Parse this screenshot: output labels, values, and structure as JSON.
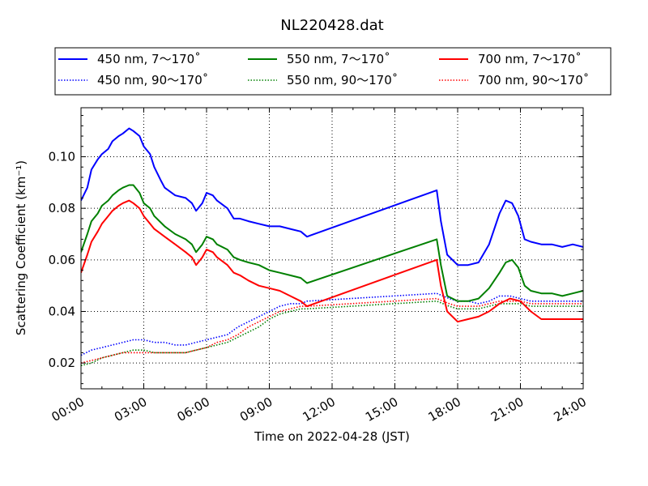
{
  "chart_data": {
    "type": "line",
    "title": "NL220428.dat",
    "xlabel": "Time on 2022-04-28 (JST)",
    "ylabel": "Scattering Coefficient (km⁻¹)",
    "xlim": [
      0,
      24
    ],
    "ylim": [
      0.01,
      0.119
    ],
    "x_ticks": [
      0,
      3,
      6,
      9,
      12,
      15,
      18,
      21,
      24
    ],
    "x_tick_labels": [
      "00:00",
      "03:00",
      "06:00",
      "09:00",
      "12:00",
      "15:00",
      "18:00",
      "21:00",
      "24:00"
    ],
    "y_ticks": [
      0.02,
      0.04,
      0.06,
      0.08,
      0.1
    ],
    "y_tick_labels": [
      "0.02",
      "0.04",
      "0.06",
      "0.08",
      "0.10"
    ],
    "grid": true,
    "legend_position": "above-plot",
    "series": [
      {
        "name": "450 nm, 7～170˚",
        "color": "#0000ff",
        "style": "solid",
        "points": [
          [
            0,
            0.083
          ],
          [
            0.3,
            0.088
          ],
          [
            0.5,
            0.095
          ],
          [
            0.8,
            0.099
          ],
          [
            1.0,
            0.101
          ],
          [
            1.3,
            0.103
          ],
          [
            1.5,
            0.106
          ],
          [
            1.8,
            0.108
          ],
          [
            2.0,
            0.109
          ],
          [
            2.3,
            0.111
          ],
          [
            2.5,
            0.11
          ],
          [
            2.8,
            0.108
          ],
          [
            3.0,
            0.104
          ],
          [
            3.3,
            0.101
          ],
          [
            3.5,
            0.096
          ],
          [
            3.8,
            0.091
          ],
          [
            4.0,
            0.088
          ],
          [
            4.5,
            0.085
          ],
          [
            5.0,
            0.084
          ],
          [
            5.3,
            0.082
          ],
          [
            5.5,
            0.079
          ],
          [
            5.8,
            0.082
          ],
          [
            6.0,
            0.086
          ],
          [
            6.3,
            0.085
          ],
          [
            6.5,
            0.083
          ],
          [
            7.0,
            0.08
          ],
          [
            7.3,
            0.076
          ],
          [
            7.6,
            0.076
          ],
          [
            8.0,
            0.075
          ],
          [
            8.5,
            0.074
          ],
          [
            9.0,
            0.073
          ],
          [
            9.5,
            0.073
          ],
          [
            10.0,
            0.072
          ],
          [
            10.5,
            0.071
          ],
          [
            10.8,
            0.069
          ],
          [
            17.0,
            0.087
          ],
          [
            17.2,
            0.075
          ],
          [
            17.5,
            0.062
          ],
          [
            18.0,
            0.058
          ],
          [
            18.5,
            0.058
          ],
          [
            19.0,
            0.059
          ],
          [
            19.5,
            0.066
          ],
          [
            20.0,
            0.078
          ],
          [
            20.3,
            0.083
          ],
          [
            20.6,
            0.082
          ],
          [
            20.9,
            0.077
          ],
          [
            21.2,
            0.068
          ],
          [
            21.5,
            0.067
          ],
          [
            22.0,
            0.066
          ],
          [
            22.5,
            0.066
          ],
          [
            23.0,
            0.065
          ],
          [
            23.5,
            0.066
          ],
          [
            24.0,
            0.065
          ]
        ]
      },
      {
        "name": "450 nm, 90～170˚",
        "color": "#0000ff",
        "style": "dotted",
        "points": [
          [
            0,
            0.023
          ],
          [
            0.5,
            0.025
          ],
          [
            1.0,
            0.026
          ],
          [
            1.5,
            0.027
          ],
          [
            2.0,
            0.028
          ],
          [
            2.5,
            0.029
          ],
          [
            3.0,
            0.029
          ],
          [
            3.5,
            0.028
          ],
          [
            4.0,
            0.028
          ],
          [
            4.5,
            0.027
          ],
          [
            5.0,
            0.027
          ],
          [
            5.5,
            0.028
          ],
          [
            6.0,
            0.029
          ],
          [
            6.5,
            0.03
          ],
          [
            7.0,
            0.031
          ],
          [
            7.5,
            0.034
          ],
          [
            8.0,
            0.036
          ],
          [
            8.5,
            0.038
          ],
          [
            9.0,
            0.04
          ],
          [
            9.5,
            0.042
          ],
          [
            10.0,
            0.043
          ],
          [
            10.5,
            0.043
          ],
          [
            10.8,
            0.044
          ],
          [
            17.0,
            0.047
          ],
          [
            17.3,
            0.046
          ],
          [
            17.6,
            0.045
          ],
          [
            18.0,
            0.044
          ],
          [
            18.5,
            0.044
          ],
          [
            19.0,
            0.043
          ],
          [
            19.5,
            0.044
          ],
          [
            20.0,
            0.046
          ],
          [
            20.5,
            0.046
          ],
          [
            21.0,
            0.045
          ],
          [
            21.5,
            0.044
          ],
          [
            22.0,
            0.044
          ],
          [
            23.0,
            0.044
          ],
          [
            24.0,
            0.044
          ]
        ]
      },
      {
        "name": "550 nm, 7～170˚",
        "color": "#008000",
        "style": "solid",
        "points": [
          [
            0,
            0.063
          ],
          [
            0.3,
            0.07
          ],
          [
            0.5,
            0.075
          ],
          [
            0.8,
            0.078
          ],
          [
            1.0,
            0.081
          ],
          [
            1.3,
            0.083
          ],
          [
            1.5,
            0.085
          ],
          [
            1.8,
            0.087
          ],
          [
            2.0,
            0.088
          ],
          [
            2.3,
            0.089
          ],
          [
            2.5,
            0.089
          ],
          [
            2.8,
            0.086
          ],
          [
            3.0,
            0.082
          ],
          [
            3.3,
            0.08
          ],
          [
            3.5,
            0.077
          ],
          [
            4.0,
            0.073
          ],
          [
            4.5,
            0.07
          ],
          [
            5.0,
            0.068
          ],
          [
            5.3,
            0.066
          ],
          [
            5.5,
            0.063
          ],
          [
            5.8,
            0.066
          ],
          [
            6.0,
            0.069
          ],
          [
            6.3,
            0.068
          ],
          [
            6.5,
            0.066
          ],
          [
            7.0,
            0.064
          ],
          [
            7.3,
            0.061
          ],
          [
            7.6,
            0.06
          ],
          [
            8.0,
            0.059
          ],
          [
            8.5,
            0.058
          ],
          [
            9.0,
            0.056
          ],
          [
            9.5,
            0.055
          ],
          [
            10.0,
            0.054
          ],
          [
            10.5,
            0.053
          ],
          [
            10.8,
            0.051
          ],
          [
            17.0,
            0.068
          ],
          [
            17.2,
            0.058
          ],
          [
            17.5,
            0.046
          ],
          [
            18.0,
            0.044
          ],
          [
            18.5,
            0.044
          ],
          [
            19.0,
            0.045
          ],
          [
            19.5,
            0.049
          ],
          [
            20.0,
            0.055
          ],
          [
            20.3,
            0.059
          ],
          [
            20.6,
            0.06
          ],
          [
            20.9,
            0.057
          ],
          [
            21.2,
            0.05
          ],
          [
            21.5,
            0.048
          ],
          [
            22.0,
            0.047
          ],
          [
            22.5,
            0.047
          ],
          [
            23.0,
            0.046
          ],
          [
            23.5,
            0.047
          ],
          [
            24.0,
            0.048
          ]
        ]
      },
      {
        "name": "550 nm, 90～170˚",
        "color": "#008000",
        "style": "dotted",
        "points": [
          [
            0,
            0.019
          ],
          [
            0.5,
            0.02
          ],
          [
            1.0,
            0.022
          ],
          [
            1.5,
            0.023
          ],
          [
            2.0,
            0.024
          ],
          [
            2.5,
            0.025
          ],
          [
            3.0,
            0.025
          ],
          [
            3.5,
            0.024
          ],
          [
            4.0,
            0.024
          ],
          [
            4.5,
            0.024
          ],
          [
            5.0,
            0.024
          ],
          [
            5.5,
            0.025
          ],
          [
            6.0,
            0.026
          ],
          [
            6.5,
            0.027
          ],
          [
            7.0,
            0.028
          ],
          [
            7.5,
            0.03
          ],
          [
            8.0,
            0.032
          ],
          [
            8.5,
            0.034
          ],
          [
            9.0,
            0.037
          ],
          [
            9.5,
            0.039
          ],
          [
            10.0,
            0.04
          ],
          [
            10.5,
            0.041
          ],
          [
            10.8,
            0.041
          ],
          [
            17.0,
            0.044
          ],
          [
            17.3,
            0.043
          ],
          [
            17.6,
            0.042
          ],
          [
            18.0,
            0.041
          ],
          [
            18.5,
            0.041
          ],
          [
            19.0,
            0.041
          ],
          [
            19.5,
            0.042
          ],
          [
            20.0,
            0.043
          ],
          [
            20.5,
            0.043
          ],
          [
            21.0,
            0.043
          ],
          [
            21.5,
            0.042
          ],
          [
            22.0,
            0.042
          ],
          [
            23.0,
            0.042
          ],
          [
            24.0,
            0.042
          ]
        ]
      },
      {
        "name": "700 nm, 7～170˚",
        "color": "#ff0000",
        "style": "solid",
        "points": [
          [
            0,
            0.055
          ],
          [
            0.3,
            0.062
          ],
          [
            0.5,
            0.067
          ],
          [
            0.8,
            0.071
          ],
          [
            1.0,
            0.074
          ],
          [
            1.3,
            0.077
          ],
          [
            1.5,
            0.079
          ],
          [
            1.8,
            0.081
          ],
          [
            2.0,
            0.082
          ],
          [
            2.3,
            0.083
          ],
          [
            2.5,
            0.082
          ],
          [
            2.8,
            0.08
          ],
          [
            3.0,
            0.077
          ],
          [
            3.3,
            0.074
          ],
          [
            3.5,
            0.072
          ],
          [
            4.0,
            0.069
          ],
          [
            4.5,
            0.066
          ],
          [
            5.0,
            0.063
          ],
          [
            5.3,
            0.061
          ],
          [
            5.5,
            0.058
          ],
          [
            5.8,
            0.061
          ],
          [
            6.0,
            0.064
          ],
          [
            6.3,
            0.063
          ],
          [
            6.5,
            0.061
          ],
          [
            7.0,
            0.058
          ],
          [
            7.3,
            0.055
          ],
          [
            7.6,
            0.054
          ],
          [
            8.0,
            0.052
          ],
          [
            8.5,
            0.05
          ],
          [
            9.0,
            0.049
          ],
          [
            9.5,
            0.048
          ],
          [
            10.0,
            0.046
          ],
          [
            10.5,
            0.044
          ],
          [
            10.8,
            0.042
          ],
          [
            17.0,
            0.06
          ],
          [
            17.2,
            0.05
          ],
          [
            17.5,
            0.04
          ],
          [
            18.0,
            0.036
          ],
          [
            18.5,
            0.037
          ],
          [
            19.0,
            0.038
          ],
          [
            19.5,
            0.04
          ],
          [
            20.0,
            0.043
          ],
          [
            20.5,
            0.045
          ],
          [
            21.0,
            0.044
          ],
          [
            21.5,
            0.04
          ],
          [
            22.0,
            0.037
          ],
          [
            22.5,
            0.037
          ],
          [
            23.0,
            0.037
          ],
          [
            23.5,
            0.037
          ],
          [
            24.0,
            0.037
          ]
        ]
      },
      {
        "name": "700 nm, 90～170˚",
        "color": "#ff0000",
        "style": "dotted",
        "points": [
          [
            0,
            0.02
          ],
          [
            0.5,
            0.021
          ],
          [
            1.0,
            0.022
          ],
          [
            1.5,
            0.023
          ],
          [
            2.0,
            0.024
          ],
          [
            2.5,
            0.024
          ],
          [
            3.0,
            0.024
          ],
          [
            3.5,
            0.024
          ],
          [
            4.0,
            0.024
          ],
          [
            4.5,
            0.024
          ],
          [
            5.0,
            0.024
          ],
          [
            5.5,
            0.025
          ],
          [
            6.0,
            0.026
          ],
          [
            6.5,
            0.028
          ],
          [
            7.0,
            0.029
          ],
          [
            7.5,
            0.031
          ],
          [
            8.0,
            0.034
          ],
          [
            8.5,
            0.036
          ],
          [
            9.0,
            0.038
          ],
          [
            9.5,
            0.04
          ],
          [
            10.0,
            0.041
          ],
          [
            10.5,
            0.042
          ],
          [
            10.8,
            0.042
          ],
          [
            17.0,
            0.045
          ],
          [
            17.3,
            0.044
          ],
          [
            17.6,
            0.043
          ],
          [
            18.0,
            0.042
          ],
          [
            18.5,
            0.042
          ],
          [
            19.0,
            0.042
          ],
          [
            19.5,
            0.043
          ],
          [
            20.0,
            0.044
          ],
          [
            20.5,
            0.044
          ],
          [
            21.0,
            0.044
          ],
          [
            21.5,
            0.043
          ],
          [
            22.0,
            0.043
          ],
          [
            23.0,
            0.043
          ],
          [
            24.0,
            0.043
          ]
        ]
      }
    ]
  }
}
